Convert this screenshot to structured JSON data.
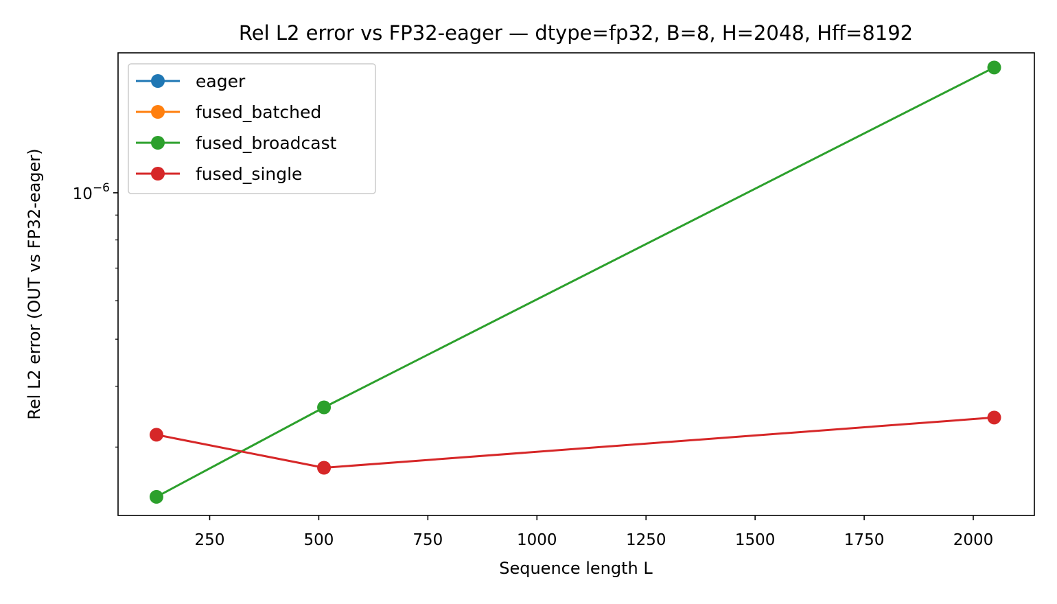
{
  "chart_data": {
    "type": "line",
    "title": "Rel L2 error vs FP32-eager — dtype=fp32, B=8, H=2048, Hff=8192",
    "xlabel": "Sequence length L",
    "ylabel": "Rel L2 error (OUT vs FP32-eager)",
    "xscale": "linear",
    "yscale": "log",
    "xlim": [
      40,
      2140
    ],
    "ylim": [
      2.17e-07,
      1.94e-06
    ],
    "xticks": [
      250,
      500,
      750,
      1000,
      1250,
      1500,
      1750,
      2000
    ],
    "xtick_labels": [
      "250",
      "500",
      "750",
      "1000",
      "1250",
      "1500",
      "1750",
      "2000"
    ],
    "yticks_major": [
      1e-06
    ],
    "ytick_labels": [
      "10−6"
    ],
    "grid": false,
    "legend_position": "upper left",
    "series": [
      {
        "name": "eager",
        "color": "#1f77b4",
        "marker": "circle",
        "x": [],
        "y": []
      },
      {
        "name": "fused_batched",
        "color": "#ff7f0e",
        "marker": "circle",
        "x": [],
        "y": []
      },
      {
        "name": "fused_broadcast",
        "color": "#2ca02c",
        "marker": "circle",
        "x": [
          128,
          512,
          2048
        ],
        "y": [
          2.37e-07,
          3.62e-07,
          1.81e-06
        ]
      },
      {
        "name": "fused_single",
        "color": "#d62728",
        "marker": "circle",
        "x": [
          128,
          512,
          2048
        ],
        "y": [
          3.18e-07,
          2.72e-07,
          3.45e-07
        ]
      }
    ]
  }
}
